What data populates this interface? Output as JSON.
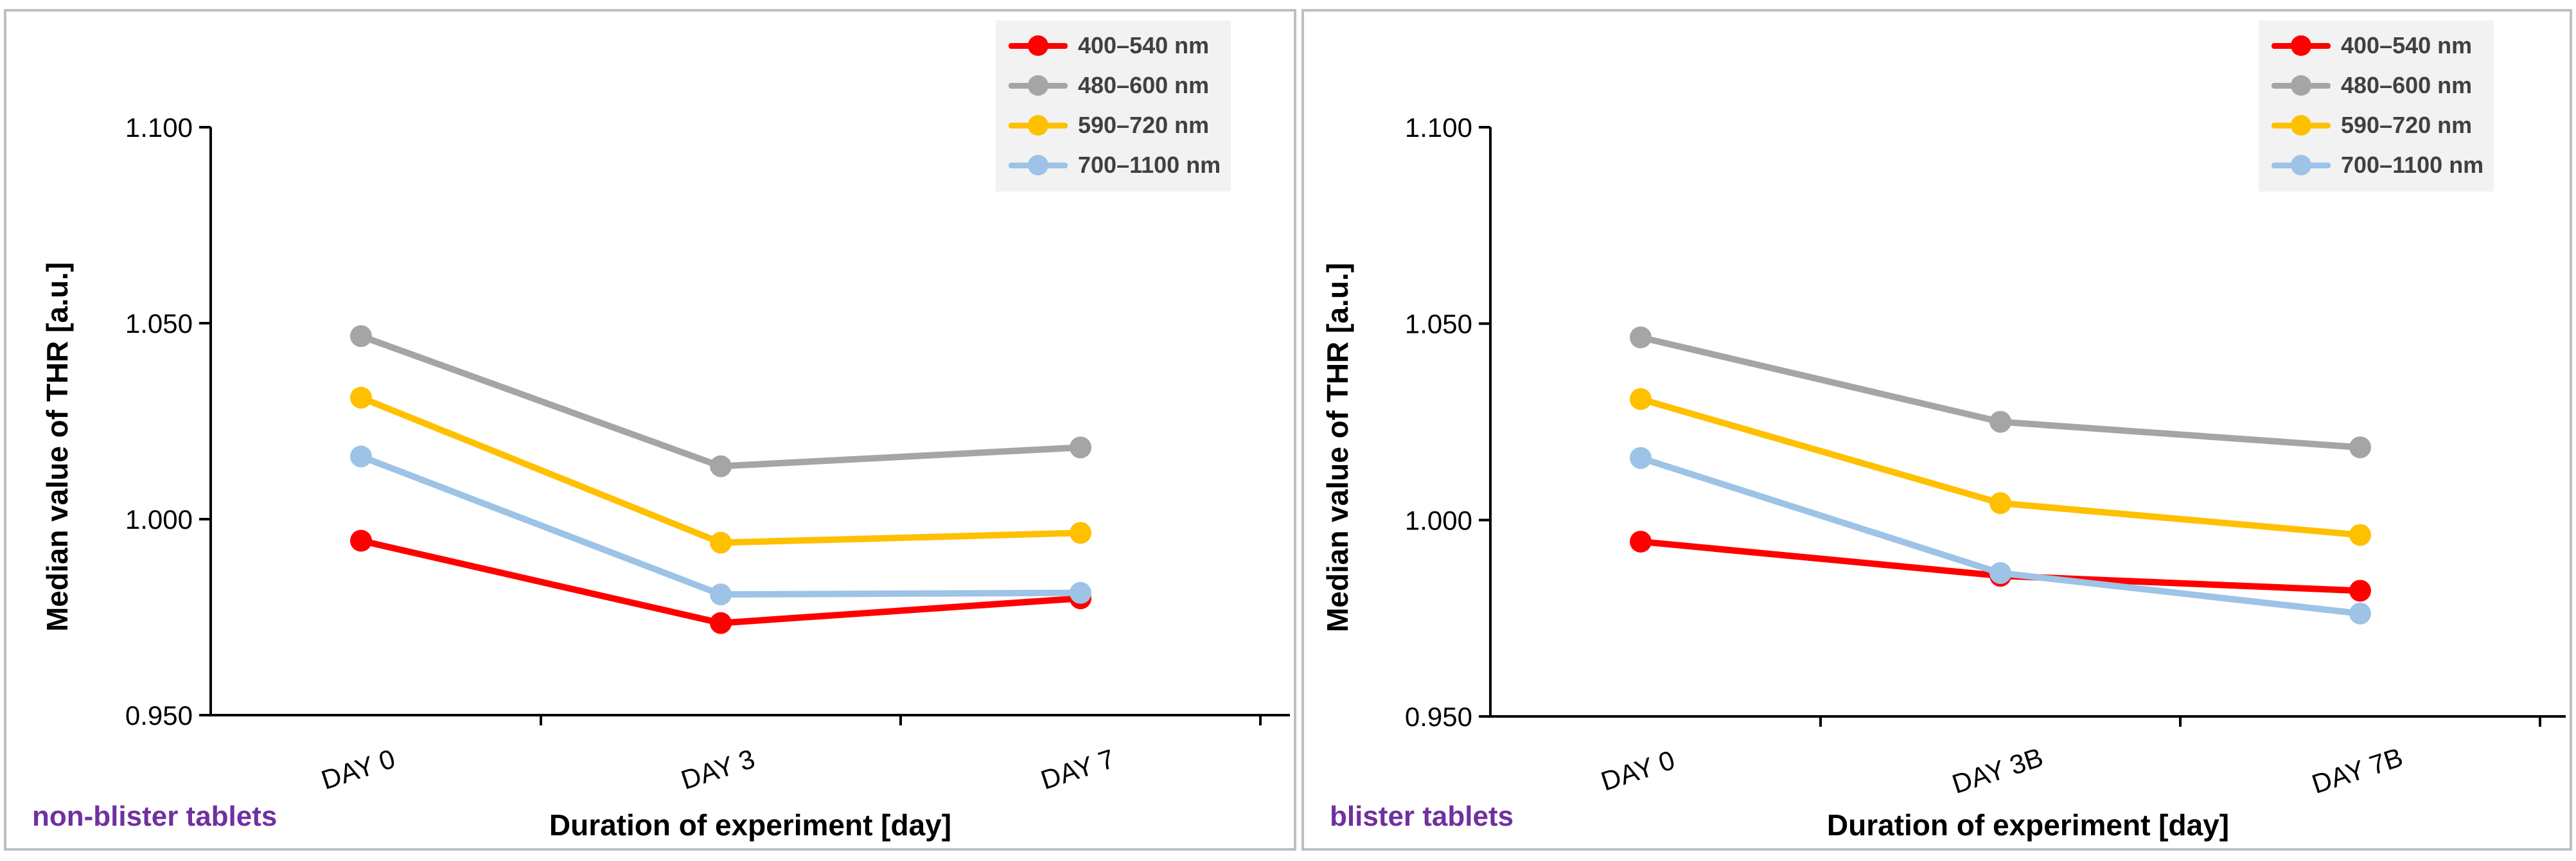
{
  "colors": {
    "red": "#ff0000",
    "gray": "#a5a5a5",
    "yellow": "#ffc000",
    "lightblue": "#9dc3e6",
    "caption": "#7030a0",
    "axis": "#000000"
  },
  "chart_data": [
    {
      "type": "line",
      "panel_label": "non-blister tablets",
      "xlabel": "Duration of experiment [day]",
      "ylabel": "Median value of THR [a.u.]",
      "categories": [
        "DAY 0",
        "DAY 3",
        "DAY 7"
      ],
      "ylim": [
        0.95,
        1.1
      ],
      "yticks": [
        "0.950",
        "1.000",
        "1.050",
        "1.100"
      ],
      "ytick_values": [
        0.95,
        1.0,
        1.05,
        1.1
      ],
      "grid": false,
      "legend_position": "top-right",
      "series": [
        {
          "name": "400–540 nm",
          "color": "#ff0000",
          "values": [
            0.9945,
            0.9735,
            0.9798
          ]
        },
        {
          "name": "480–600 nm",
          "color": "#a5a5a5",
          "values": [
            1.0467,
            1.0135,
            1.0183
          ]
        },
        {
          "name": "590–720 nm",
          "color": "#ffc000",
          "values": [
            1.031,
            0.994,
            0.9965
          ]
        },
        {
          "name": "700–1100 nm",
          "color": "#9dc3e6",
          "values": [
            1.016,
            0.9808,
            0.9812
          ]
        }
      ]
    },
    {
      "type": "line",
      "panel_label": "blister tablets",
      "xlabel": "Duration of experiment [day]",
      "ylabel": "Median value of THR [a.u.]",
      "categories": [
        "DAY 0",
        "DAY 3B",
        "DAY 7B"
      ],
      "ylim": [
        0.95,
        1.1
      ],
      "yticks": [
        "0.950",
        "1.000",
        "1.050",
        "1.100"
      ],
      "ytick_values": [
        0.95,
        1.0,
        1.05,
        1.1
      ],
      "grid": false,
      "legend_position": "top-right",
      "series": [
        {
          "name": "400–540 nm",
          "color": "#ff0000",
          "values": [
            0.9945,
            0.9858,
            0.982
          ]
        },
        {
          "name": "480–600 nm",
          "color": "#a5a5a5",
          "values": [
            1.0465,
            1.025,
            1.0185
          ]
        },
        {
          "name": "590–720 nm",
          "color": "#ffc000",
          "values": [
            1.0308,
            1.0043,
            0.9962
          ]
        },
        {
          "name": "700–1100 nm",
          "color": "#9dc3e6",
          "values": [
            1.0158,
            0.9865,
            0.9762
          ]
        }
      ]
    }
  ]
}
